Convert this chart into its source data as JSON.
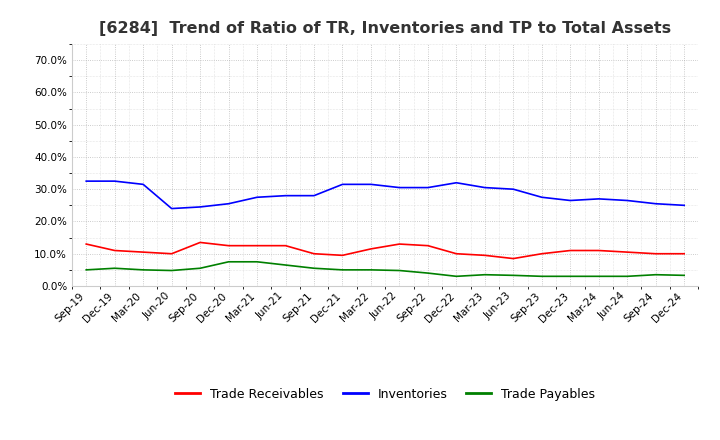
{
  "title": "[6284]  Trend of Ratio of TR, Inventories and TP to Total Assets",
  "x_labels": [
    "Sep-19",
    "Dec-19",
    "Mar-20",
    "Jun-20",
    "Sep-20",
    "Dec-20",
    "Mar-21",
    "Jun-21",
    "Sep-21",
    "Dec-21",
    "Mar-22",
    "Jun-22",
    "Sep-22",
    "Dec-22",
    "Mar-23",
    "Jun-23",
    "Sep-23",
    "Dec-23",
    "Mar-24",
    "Jun-24",
    "Sep-24",
    "Dec-24"
  ],
  "trade_receivables": [
    0.13,
    0.11,
    0.105,
    0.1,
    0.135,
    0.125,
    0.125,
    0.125,
    0.1,
    0.095,
    0.115,
    0.13,
    0.125,
    0.1,
    0.095,
    0.085,
    0.1,
    0.11,
    0.11,
    0.105,
    0.1,
    0.1
  ],
  "inventories": [
    0.325,
    0.325,
    0.315,
    0.24,
    0.245,
    0.255,
    0.275,
    0.28,
    0.28,
    0.315,
    0.315,
    0.305,
    0.305,
    0.32,
    0.305,
    0.3,
    0.275,
    0.265,
    0.27,
    0.265,
    0.255,
    0.25
  ],
  "trade_payables": [
    0.05,
    0.055,
    0.05,
    0.048,
    0.055,
    0.075,
    0.075,
    0.065,
    0.055,
    0.05,
    0.05,
    0.048,
    0.04,
    0.03,
    0.035,
    0.033,
    0.03,
    0.03,
    0.03,
    0.03,
    0.035,
    0.033
  ],
  "tr_color": "#FF0000",
  "inv_color": "#0000FF",
  "tp_color": "#008000",
  "ylim": [
    0.0,
    0.75
  ],
  "yticks": [
    0.0,
    0.1,
    0.2,
    0.3,
    0.4,
    0.5,
    0.6,
    0.7
  ],
  "background_color": "#FFFFFF",
  "plot_bg_color": "#FFFFFF",
  "grid_color": "#AAAAAA",
  "title_fontsize": 11.5,
  "title_color": "#333333",
  "legend_fontsize": 9,
  "tick_fontsize": 7.5,
  "linewidth": 1.2
}
